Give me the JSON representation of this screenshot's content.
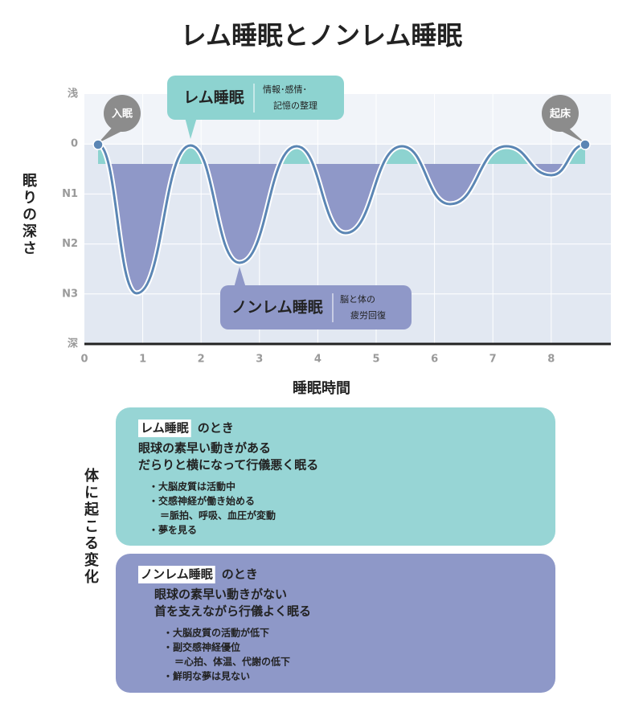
{
  "title": "レム睡眠とノンレム睡眠",
  "chart": {
    "y_axis_title": "眠りの深さ",
    "y_labels": [
      "浅",
      "0",
      "N1",
      "N2",
      "N3",
      "深"
    ],
    "x_labels": [
      "0",
      "1",
      "2",
      "3",
      "4",
      "5",
      "6",
      "7",
      "8"
    ],
    "x_axis_title": "睡眠時間",
    "start_label": "入眠",
    "end_label": "起床",
    "rem": {
      "title": "レム睡眠",
      "lines": [
        "情報･感情･",
        "記憶の整理"
      ]
    },
    "nrem": {
      "title": "ノンレム睡眠",
      "lines": [
        "脳と体の",
        "疲労回復"
      ]
    }
  },
  "side_title": "体に起こる変化",
  "panels": [
    {
      "heading": "レム睡眠",
      "suffix": "のとき",
      "summary": [
        "眼球の素早い動きがある",
        "だらりと横になって行儀悪く眠る"
      ],
      "details": [
        "・大脳皮質は活動中",
        "・交感神経が働き始める",
        "＝脈拍、呼吸、血圧が変動",
        "・夢を見る"
      ]
    },
    {
      "heading": "ノンレム睡眠",
      "suffix": "のとき",
      "summary": [
        "眼球の素早い動きがない",
        "首を支えながら行儀よく眠る"
      ],
      "details": [
        "・大脳皮質の活動が低下",
        "・副交感神経優位",
        "＝心拍、体温、代謝の低下",
        "・鮮明な夢は見ない"
      ]
    }
  ]
}
